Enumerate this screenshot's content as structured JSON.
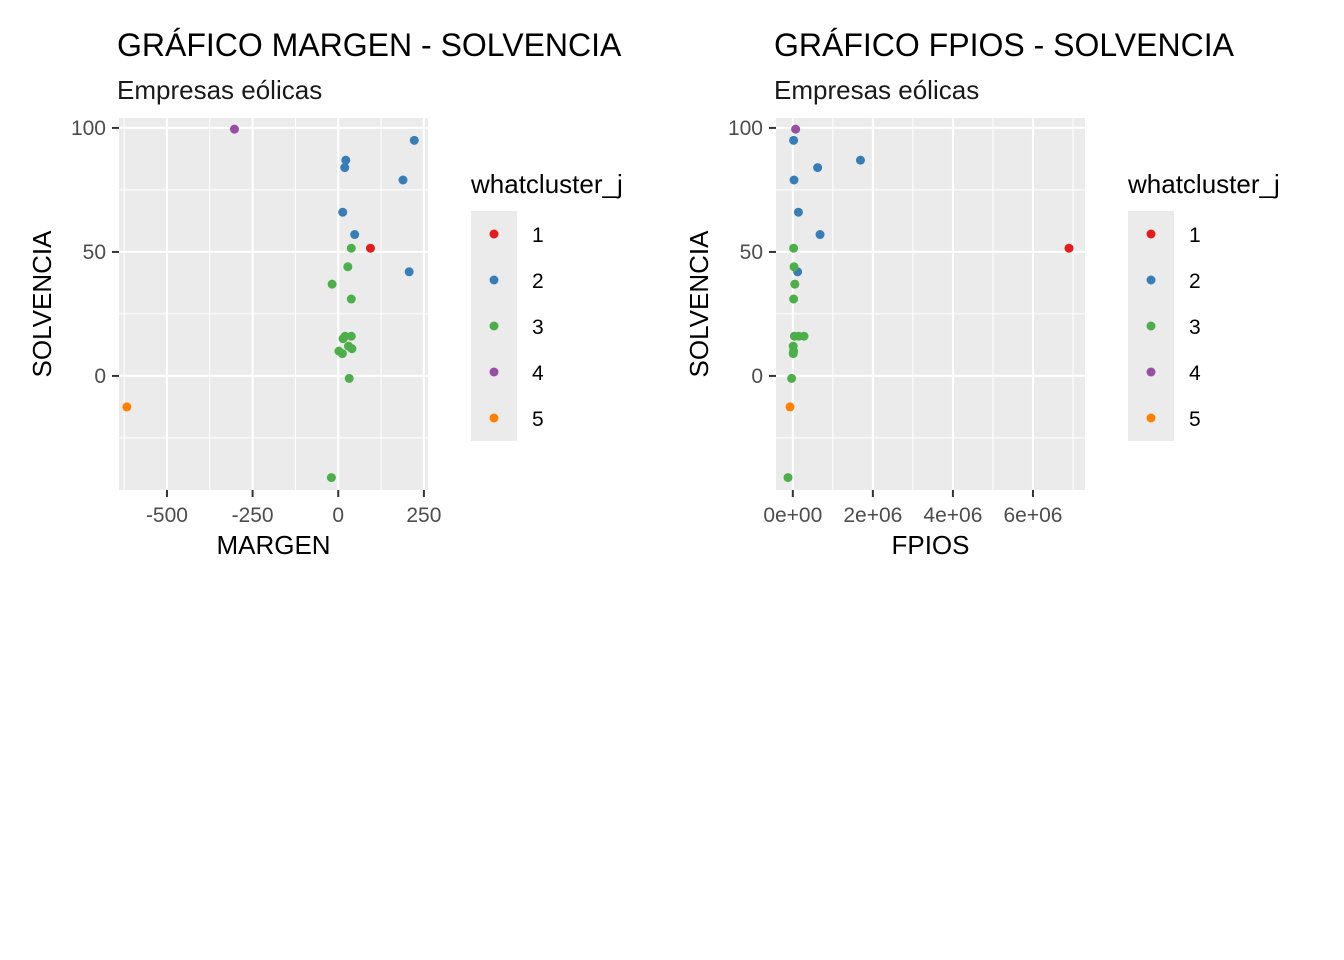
{
  "chart_data": [
    {
      "type": "scatter",
      "title": "GRÁFICO MARGEN - SOLVENCIA",
      "subtitle": "Empresas eólicas",
      "xlabel": "MARGEN",
      "ylabel": "SOLVENCIA",
      "xlim": [
        -640,
        262
      ],
      "ylim": [
        -46,
        104
      ],
      "x_ticks": [
        {
          "value": -500,
          "label": "-500"
        },
        {
          "value": -250,
          "label": "-250"
        },
        {
          "value": 0,
          "label": "0"
        },
        {
          "value": 250,
          "label": "250"
        }
      ],
      "y_ticks": [
        {
          "value": 0,
          "label": "0"
        },
        {
          "value": 50,
          "label": "50"
        },
        {
          "value": 100,
          "label": "100"
        }
      ],
      "grid": true,
      "legend": {
        "title": "whatcluster_j",
        "placement": "right",
        "entries": [
          {
            "label": "1",
            "color": "#E41A1C"
          },
          {
            "label": "2",
            "color": "#377EB8"
          },
          {
            "label": "3",
            "color": "#4DAF4A"
          },
          {
            "label": "4",
            "color": "#984EA3"
          },
          {
            "label": "5",
            "color": "#FF7F00"
          }
        ]
      },
      "series": [
        {
          "name": "1",
          "color": "#E41A1C",
          "points": [
            [
              94,
              51.5
            ]
          ]
        },
        {
          "name": "2",
          "color": "#377EB8",
          "points": [
            [
              222,
              95
            ],
            [
              22,
              87
            ],
            [
              19,
              84
            ],
            [
              189,
              79
            ],
            [
              48,
              57
            ],
            [
              13,
              66
            ],
            [
              207,
              42
            ]
          ]
        },
        {
          "name": "3",
          "color": "#4DAF4A",
          "points": [
            [
              38,
              51.5
            ],
            [
              28,
              44
            ],
            [
              -18,
              37
            ],
            [
              38,
              31
            ],
            [
              20,
              16
            ],
            [
              38,
              16
            ],
            [
              14,
              15
            ],
            [
              30,
              12
            ],
            [
              2,
              10
            ],
            [
              40,
              11
            ],
            [
              12,
              9
            ],
            [
              32,
              -1
            ],
            [
              -20,
              -41
            ]
          ]
        },
        {
          "name": "4",
          "color": "#984EA3",
          "points": [
            [
              -303,
              99.5
            ]
          ]
        },
        {
          "name": "5",
          "color": "#FF7F00",
          "points": [
            [
              -617,
              -12.5
            ]
          ]
        }
      ]
    },
    {
      "type": "scatter",
      "title": "GRÁFICO FPIOS - SOLVENCIA",
      "subtitle": "Empresas eólicas",
      "xlabel": "FPIOS",
      "ylabel": "SOLVENCIA",
      "xlim": [
        -420000,
        7300000
      ],
      "ylim": [
        -46,
        104
      ],
      "x_ticks": [
        {
          "value": 0,
          "label": "0e+00"
        },
        {
          "value": 2000000,
          "label": "2e+06"
        },
        {
          "value": 4000000,
          "label": "4e+06"
        },
        {
          "value": 6000000,
          "label": "6e+06"
        }
      ],
      "y_ticks": [
        {
          "value": 0,
          "label": "0"
        },
        {
          "value": 50,
          "label": "50"
        },
        {
          "value": 100,
          "label": "100"
        }
      ],
      "grid": true,
      "legend": {
        "title": "whatcluster_j",
        "placement": "right",
        "entries": [
          {
            "label": "1",
            "color": "#E41A1C"
          },
          {
            "label": "2",
            "color": "#377EB8"
          },
          {
            "label": "3",
            "color": "#4DAF4A"
          },
          {
            "label": "4",
            "color": "#984EA3"
          },
          {
            "label": "5",
            "color": "#FF7F00"
          }
        ]
      },
      "series": [
        {
          "name": "1",
          "color": "#E41A1C",
          "points": [
            [
              6900000,
              51.5
            ]
          ]
        },
        {
          "name": "2",
          "color": "#377EB8",
          "points": [
            [
              20000,
              95
            ],
            [
              1690000,
              87
            ],
            [
              620000,
              84
            ],
            [
              30000,
              79
            ],
            [
              680000,
              57
            ],
            [
              140000,
              66
            ],
            [
              120000,
              42
            ]
          ]
        },
        {
          "name": "3",
          "color": "#4DAF4A",
          "points": [
            [
              20000,
              51.5
            ],
            [
              30000,
              44
            ],
            [
              50000,
              37
            ],
            [
              20000,
              31
            ],
            [
              40000,
              16
            ],
            [
              150000,
              16
            ],
            [
              280000,
              16
            ],
            [
              10000,
              12
            ],
            [
              20000,
              10
            ],
            [
              10000,
              9
            ],
            [
              -30000,
              -1
            ],
            [
              -120000,
              -41
            ]
          ]
        },
        {
          "name": "4",
          "color": "#984EA3",
          "points": [
            [
              70000,
              99.5
            ]
          ]
        },
        {
          "name": "5",
          "color": "#FF7F00",
          "points": [
            [
              -70000,
              -12.5
            ]
          ]
        }
      ]
    }
  ]
}
